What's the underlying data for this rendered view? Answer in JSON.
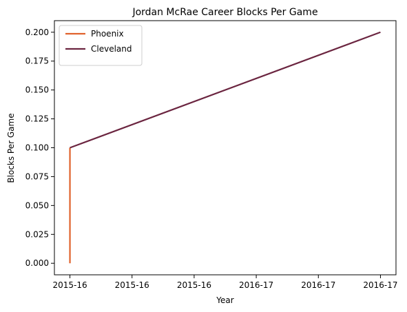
{
  "chart_data": {
    "type": "line",
    "title": "Jordan McRae Career Blocks Per Game",
    "xlabel": "Year",
    "ylabel": "Blocks Per Game",
    "x_tick_labels": [
      "2015-16",
      "2015-16",
      "2015-16",
      "2016-17",
      "2016-17",
      "2016-17"
    ],
    "y_ticks": [
      0.0,
      0.025,
      0.05,
      0.075,
      0.1,
      0.125,
      0.15,
      0.175,
      0.2
    ],
    "y_tick_labels": [
      "0.000",
      "0.025",
      "0.050",
      "0.075",
      "0.100",
      "0.125",
      "0.150",
      "0.175",
      "0.200"
    ],
    "ylim": [
      -0.01,
      0.21
    ],
    "grid": false,
    "legend_position": "top-left",
    "series": [
      {
        "name": "Phoenix",
        "color": "#e0622b",
        "points": [
          [
            0,
            0.0
          ],
          [
            0,
            0.1
          ]
        ]
      },
      {
        "name": "Cleveland",
        "color": "#6b2540",
        "points": [
          [
            0,
            0.1
          ],
          [
            1,
            0.2
          ]
        ]
      }
    ]
  }
}
